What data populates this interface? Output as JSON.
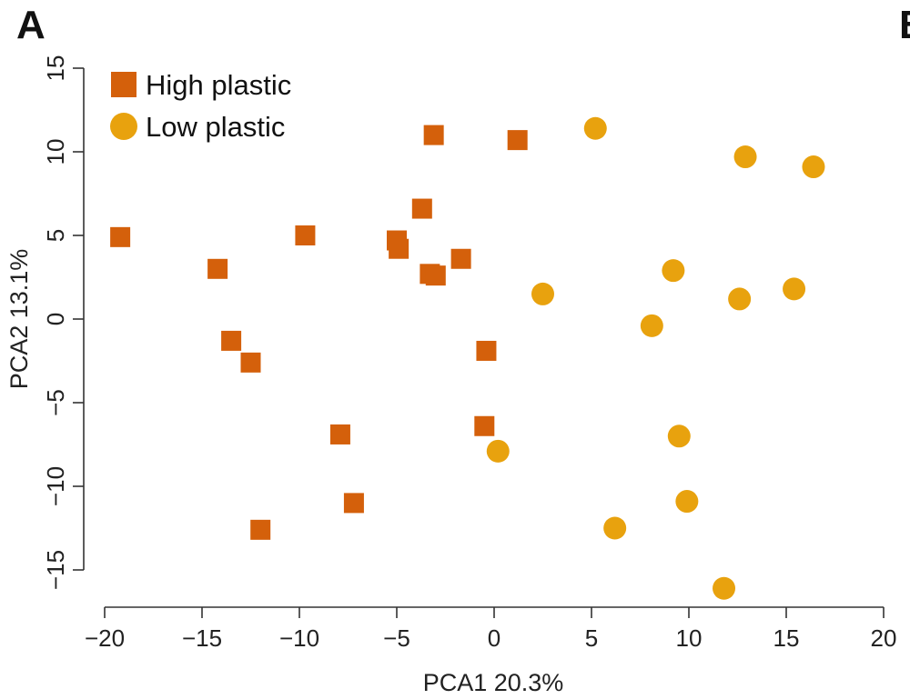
{
  "panel_labels": {
    "main": "A",
    "next": "B"
  },
  "chart_data": {
    "type": "scatter",
    "title": "",
    "xlabel": "PCA1 20.3%",
    "ylabel": "PCA2 13.1%",
    "xlim": [
      -20,
      20
    ],
    "ylim": [
      -15,
      15
    ],
    "x_ticks": [
      -20,
      -15,
      -10,
      -5,
      0,
      5,
      10,
      15,
      20
    ],
    "y_ticks": [
      -15,
      -10,
      -5,
      0,
      5,
      10,
      15
    ],
    "x_tick_labels": [
      "−20",
      "−15",
      "−10",
      "−5",
      "0",
      "5",
      "10",
      "15",
      "20"
    ],
    "y_tick_labels": [
      "−15",
      "−10",
      "−5",
      "0",
      "5",
      "10",
      "15"
    ],
    "grid": false,
    "legend": {
      "placement": "top-left"
    },
    "series": [
      {
        "name": "High plastic",
        "marker": "square",
        "color": "#D4600B",
        "points": [
          [
            -19.2,
            4.9
          ],
          [
            -14.2,
            3.0
          ],
          [
            -13.5,
            -1.3
          ],
          [
            -12.5,
            -2.6
          ],
          [
            -12.0,
            -12.6
          ],
          [
            -9.7,
            5.0
          ],
          [
            -7.9,
            -6.9
          ],
          [
            -7.2,
            -11.0
          ],
          [
            -5.0,
            4.7
          ],
          [
            -4.9,
            4.2
          ],
          [
            -3.7,
            6.6
          ],
          [
            -3.3,
            2.7
          ],
          [
            -3.1,
            11.0
          ],
          [
            -3.0,
            2.6
          ],
          [
            -1.7,
            3.6
          ],
          [
            -0.5,
            -6.4
          ],
          [
            -0.4,
            -1.9
          ],
          [
            1.2,
            10.7
          ]
        ]
      },
      {
        "name": "Low plastic",
        "marker": "circle",
        "color": "#E8A20E",
        "points": [
          [
            5.2,
            11.4
          ],
          [
            12.9,
            9.7
          ],
          [
            16.4,
            9.1
          ],
          [
            9.2,
            2.9
          ],
          [
            2.5,
            1.5
          ],
          [
            12.6,
            1.2
          ],
          [
            15.4,
            1.8
          ],
          [
            8.1,
            -0.4
          ],
          [
            0.2,
            -7.9
          ],
          [
            9.5,
            -7.0
          ],
          [
            9.9,
            -10.9
          ],
          [
            6.2,
            -12.5
          ],
          [
            11.8,
            -16.1
          ]
        ]
      }
    ]
  }
}
